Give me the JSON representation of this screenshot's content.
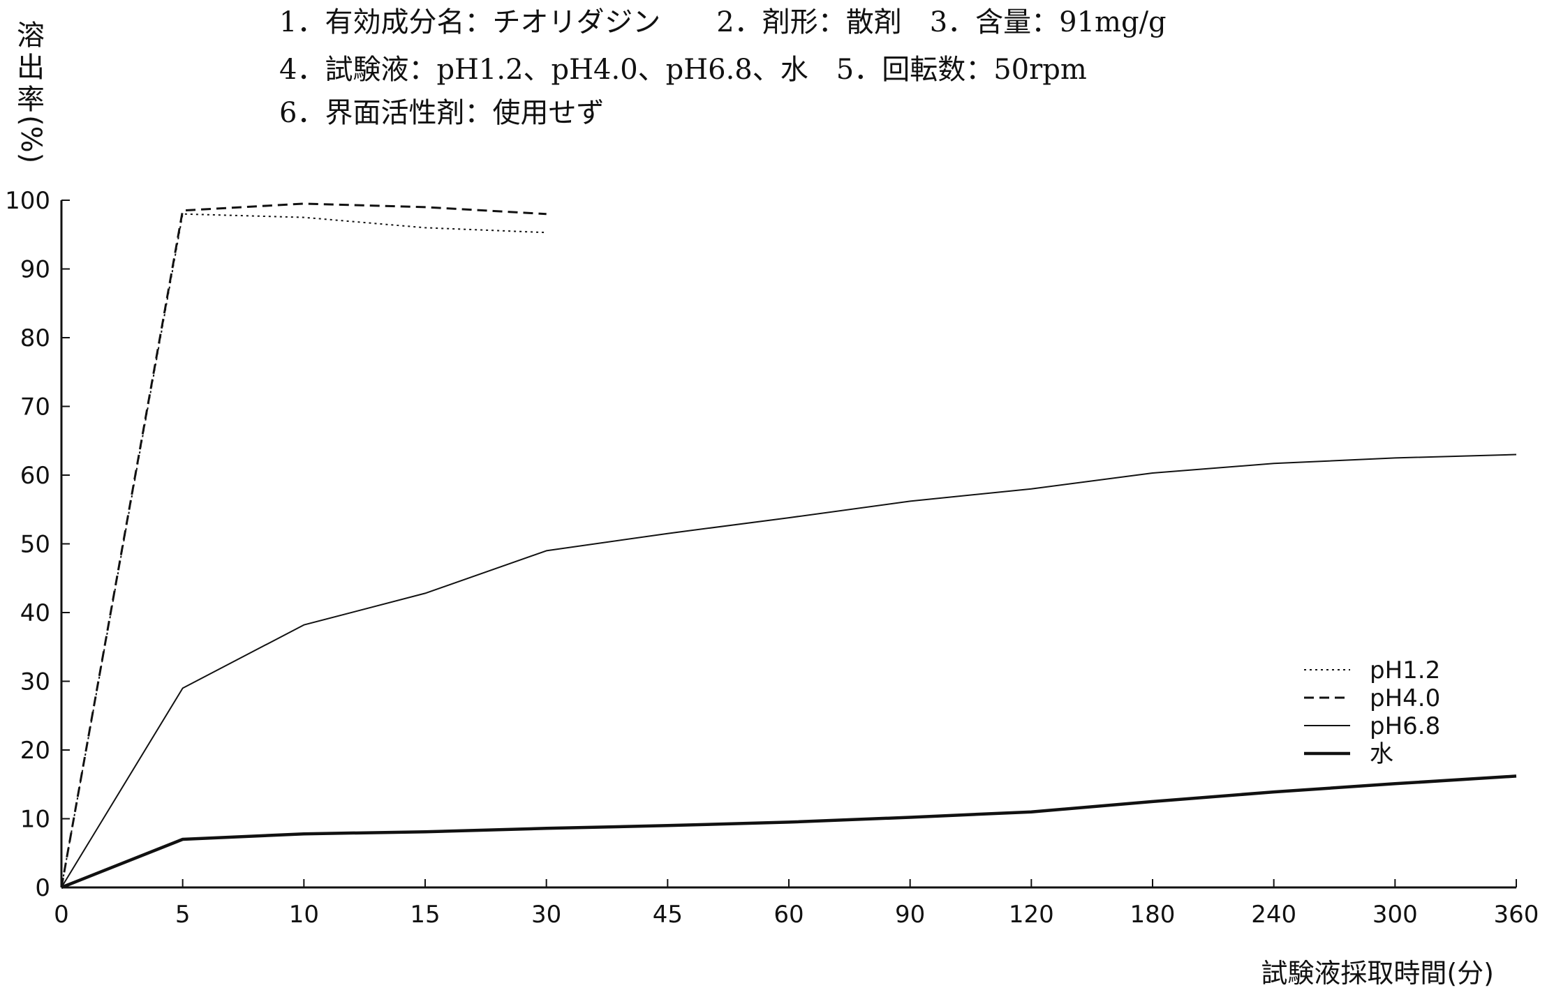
{
  "info_lines": [
    "1．有効成分名：チオリダジン　　2．剤形：散剤　3．含量：91mg/g",
    "4．試験液：pH1.2、pH4.0、pH6.8、水　5．回転数：50rpm",
    "6．界面活性剤：使用せず"
  ],
  "chart_data": {
    "type": "line",
    "xlabel": "試験液採取時間(分)",
    "ylabel": [
      "溶",
      "出",
      "率",
      "(%)"
    ],
    "categories": [
      "0",
      "5",
      "10",
      "15",
      "30",
      "45",
      "60",
      "90",
      "120",
      "180",
      "240",
      "300",
      "360"
    ],
    "y_ticks": [
      0,
      10,
      20,
      30,
      40,
      50,
      60,
      70,
      80,
      90,
      100
    ],
    "ylim": [
      0,
      100
    ],
    "grid": false,
    "legend_position": "right",
    "series": [
      {
        "name": "pH1.2",
        "style": "dotted",
        "x": [
          "0",
          "5",
          "10",
          "15",
          "30"
        ],
        "values": [
          0,
          98,
          97.5,
          96,
          95.3
        ]
      },
      {
        "name": "pH4.0",
        "style": "dashed",
        "x": [
          "0",
          "5",
          "10",
          "15",
          "30"
        ],
        "values": [
          0,
          98.5,
          99.5,
          99,
          98
        ]
      },
      {
        "name": "pH6.8",
        "style": "thin",
        "x": [
          "0",
          "5",
          "10",
          "15",
          "30",
          "45",
          "60",
          "90",
          "120",
          "180",
          "240",
          "300",
          "360"
        ],
        "values": [
          0,
          29,
          38.2,
          42.8,
          49,
          51.5,
          53.8,
          56.2,
          58,
          60.3,
          61.7,
          62.5,
          63
        ]
      },
      {
        "name": "水",
        "style": "thick",
        "x": [
          "0",
          "5",
          "10",
          "15",
          "30",
          "45",
          "60",
          "90",
          "120",
          "180",
          "240",
          "300",
          "360"
        ],
        "values": [
          0,
          7,
          7.8,
          8.1,
          8.6,
          9,
          9.5,
          10.2,
          11,
          12.5,
          13.9,
          15.1,
          16.2
        ]
      }
    ],
    "colors": {
      "line": "#111111",
      "axis": "#111111",
      "background": "#ffffff"
    }
  }
}
